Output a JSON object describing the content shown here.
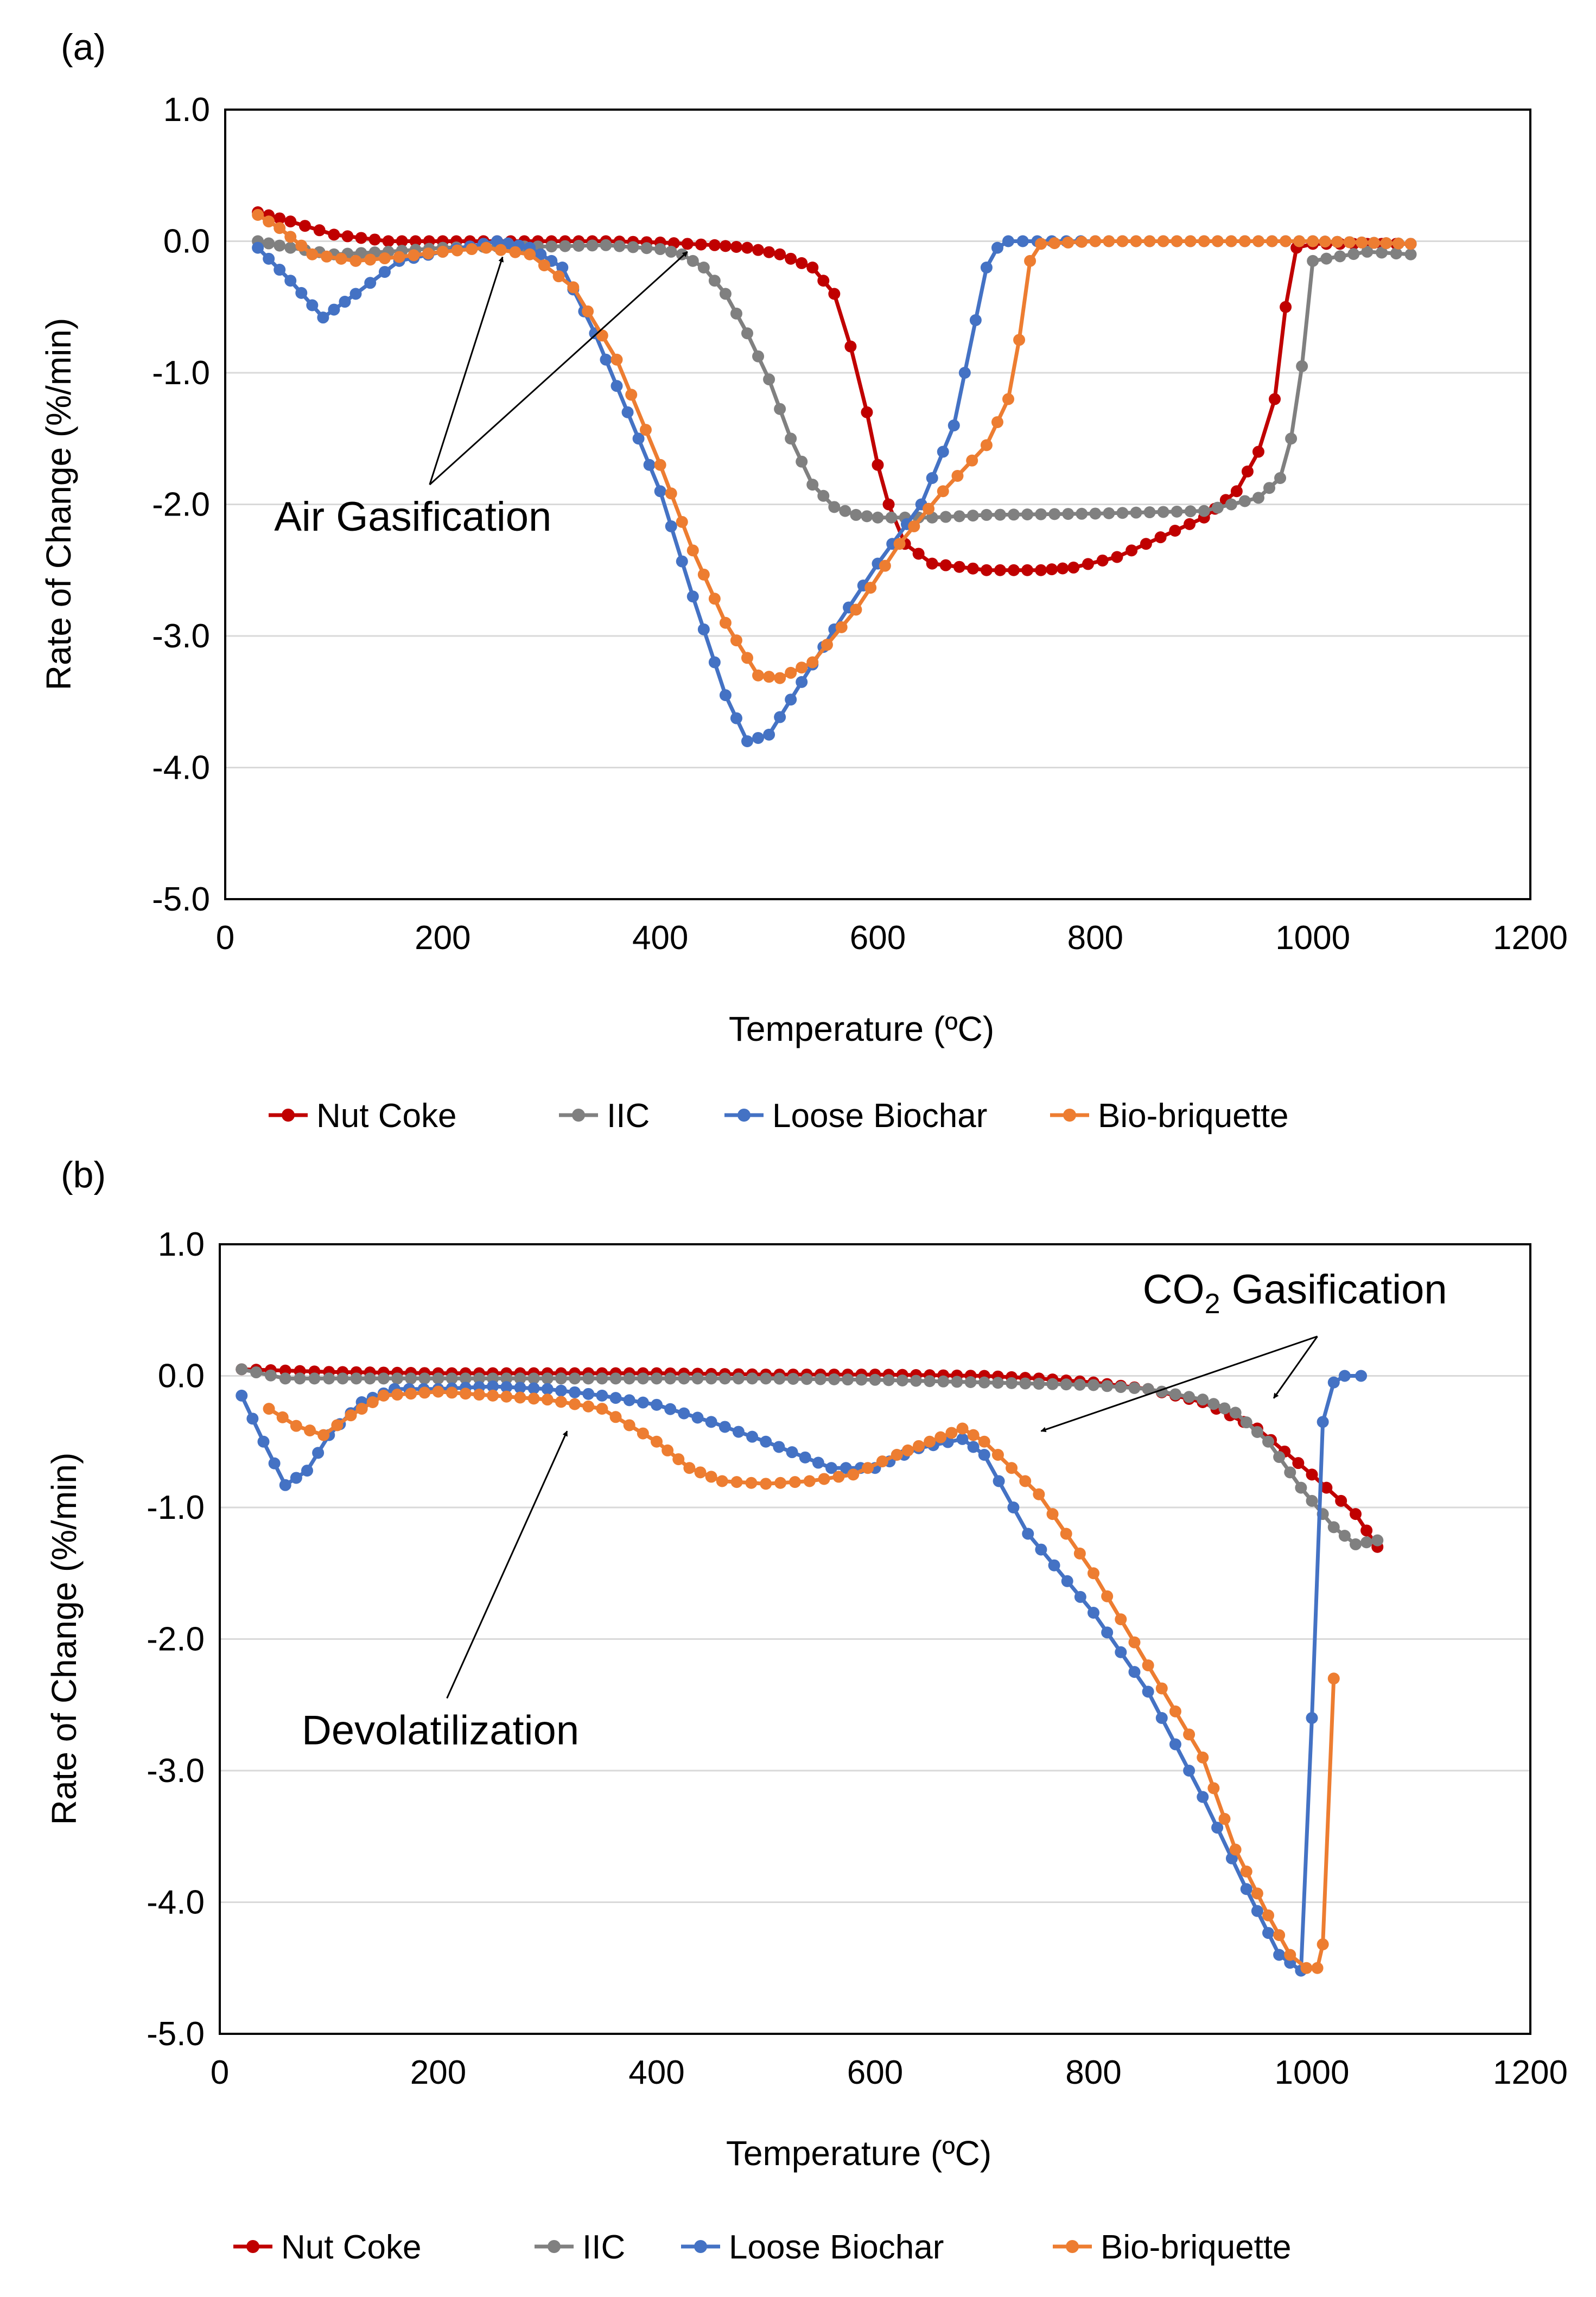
{
  "chart_data": [
    {
      "type": "line",
      "panel_label": "(a)",
      "xlabel": "Temperature (ºC)",
      "ylabel": "Rate of Change (%/min)",
      "xlim": [
        0,
        1200
      ],
      "ylim": [
        -5,
        1
      ],
      "xticks": [
        0,
        200,
        400,
        600,
        800,
        1000,
        1200
      ],
      "xtick_labels": [
        "0",
        "200",
        "400",
        "600",
        "800",
        "1000",
        "1200"
      ],
      "yticks": [
        1,
        0,
        -1,
        -2,
        -3,
        -4,
        -5
      ],
      "ytick_labels": [
        "1.0",
        "0.0",
        "-1.0",
        "-2.0",
        "-3.0",
        "-4.0",
        "-5.0"
      ],
      "grid": "horizontal",
      "legend_position": "bottom",
      "annotations": [
        {
          "text": "Air Gasification",
          "anchor": [
            45,
            -2.2
          ],
          "arrows_to": [
            [
              255,
              -0.12
            ],
            [
              425,
              -0.08
            ]
          ],
          "arrow_origin": [
            188,
            -1.85
          ]
        }
      ],
      "series": [
        {
          "name": "Nut Coke",
          "color": "#C00000",
          "x": [
            30,
            60,
            100,
            150,
            200,
            250,
            300,
            350,
            400,
            450,
            480,
            510,
            540,
            560,
            575,
            590,
            600,
            610,
            625,
            650,
            700,
            750,
            780,
            820,
            860,
            900,
            930,
            950,
            965,
            975,
            985,
            1000,
            1050,
            1090
          ],
          "y": [
            0.22,
            0.15,
            0.05,
            0.0,
            0.0,
            0.0,
            0.0,
            0.0,
            -0.01,
            -0.03,
            -0.05,
            -0.1,
            -0.2,
            -0.4,
            -0.8,
            -1.3,
            -1.7,
            -2.0,
            -2.3,
            -2.45,
            -2.5,
            -2.5,
            -2.48,
            -2.4,
            -2.25,
            -2.1,
            -1.9,
            -1.6,
            -1.2,
            -0.5,
            -0.05,
            -0.02,
            -0.02,
            -0.02
          ]
        },
        {
          "name": "IIC",
          "color": "#808080",
          "x": [
            30,
            60,
            100,
            150,
            200,
            250,
            300,
            350,
            400,
            420,
            440,
            460,
            480,
            500,
            520,
            540,
            560,
            580,
            600,
            650,
            700,
            800,
            900,
            950,
            970,
            980,
            990,
            1000,
            1050,
            1090
          ],
          "y": [
            0.0,
            -0.05,
            -0.1,
            -0.08,
            -0.05,
            -0.04,
            -0.04,
            -0.03,
            -0.06,
            -0.1,
            -0.2,
            -0.4,
            -0.7,
            -1.05,
            -1.5,
            -1.85,
            -2.02,
            -2.08,
            -2.1,
            -2.1,
            -2.08,
            -2.07,
            -2.05,
            -1.95,
            -1.8,
            -1.5,
            -0.95,
            -0.15,
            -0.08,
            -0.1
          ]
        },
        {
          "name": "Loose Biochar",
          "color": "#4472C4",
          "x": [
            30,
            60,
            90,
            120,
            160,
            200,
            250,
            280,
            310,
            340,
            370,
            400,
            430,
            460,
            480,
            500,
            530,
            560,
            600,
            640,
            670,
            690,
            700,
            710,
            720,
            760,
            800,
            900,
            1000,
            1090
          ],
          "y": [
            -0.05,
            -0.3,
            -0.58,
            -0.4,
            -0.15,
            -0.08,
            0.0,
            -0.05,
            -0.2,
            -0.7,
            -1.3,
            -1.9,
            -2.7,
            -3.45,
            -3.8,
            -3.75,
            -3.35,
            -2.95,
            -2.45,
            -2.0,
            -1.4,
            -0.6,
            -0.2,
            -0.05,
            0.0,
            0.0,
            0.0,
            0.0,
            0.0,
            -0.02
          ]
        },
        {
          "name": "Bio-briquette",
          "color": "#ED7D31",
          "x": [
            30,
            50,
            80,
            120,
            160,
            200,
            240,
            280,
            320,
            360,
            400,
            430,
            460,
            490,
            510,
            540,
            580,
            620,
            660,
            700,
            720,
            730,
            740,
            750,
            800,
            900,
            1000,
            1090
          ],
          "y": [
            0.2,
            0.1,
            -0.1,
            -0.15,
            -0.12,
            -0.08,
            -0.05,
            -0.1,
            -0.35,
            -0.9,
            -1.7,
            -2.35,
            -2.9,
            -3.3,
            -3.32,
            -3.2,
            -2.8,
            -2.3,
            -1.9,
            -1.55,
            -1.2,
            -0.75,
            -0.15,
            -0.02,
            0.0,
            0.0,
            0.0,
            -0.02
          ]
        }
      ]
    },
    {
      "type": "line",
      "panel_label": "(b)",
      "xlabel": "Temperature (ºC)",
      "ylabel": "Rate of Change (%/min)",
      "xlim": [
        0,
        1200
      ],
      "ylim": [
        -5,
        1
      ],
      "xticks": [
        0,
        200,
        400,
        600,
        800,
        1000,
        1200
      ],
      "xtick_labels": [
        "0",
        "200",
        "400",
        "600",
        "800",
        "1000",
        "1200"
      ],
      "yticks": [
        1,
        0,
        -1,
        -2,
        -3,
        -4,
        -5
      ],
      "ytick_labels": [
        "1.0",
        "0.0",
        "-1.0",
        "-2.0",
        "-3.0",
        "-4.0",
        "-5.0"
      ],
      "grid": "horizontal",
      "legend_position": "bottom",
      "annotations": [
        {
          "text": "Devolatilization",
          "anchor": [
            75,
            -2.8
          ],
          "arrows_to": [
            [
              318,
              -0.42
            ]
          ],
          "arrow_origin": [
            208,
            -2.45
          ]
        },
        {
          "text_main": "CO",
          "text_sub": "2",
          "text_rest": " Gasification",
          "anchor": [
            845,
            0.55
          ],
          "arrows_to": [
            [
              965,
              -0.17
            ],
            [
              752,
              -0.42
            ]
          ],
          "arrow_origin": [
            1005,
            0.3
          ]
        }
      ],
      "series": [
        {
          "name": "Nut Coke",
          "color": "#C00000",
          "x": [
            20,
            60,
            100,
            200,
            300,
            400,
            500,
            600,
            700,
            750,
            800,
            850,
            900,
            950,
            1000,
            1040,
            1060
          ],
          "y": [
            0.05,
            0.04,
            0.03,
            0.02,
            0.02,
            0.02,
            0.01,
            0.01,
            0.0,
            -0.02,
            -0.05,
            -0.1,
            -0.2,
            -0.4,
            -0.75,
            -1.05,
            -1.3
          ]
        },
        {
          "name": "IIC",
          "color": "#808080",
          "x": [
            20,
            60,
            100,
            200,
            300,
            400,
            500,
            600,
            700,
            800,
            850,
            900,
            930,
            960,
            990,
            1020,
            1040,
            1060
          ],
          "y": [
            0.05,
            -0.02,
            -0.02,
            -0.02,
            -0.02,
            -0.02,
            -0.02,
            -0.03,
            -0.05,
            -0.07,
            -0.1,
            -0.18,
            -0.28,
            -0.5,
            -0.85,
            -1.15,
            -1.28,
            -1.25
          ]
        },
        {
          "name": "Loose Biochar",
          "color": "#4472C4",
          "x": [
            20,
            40,
            60,
            80,
            100,
            130,
            160,
            200,
            250,
            300,
            350,
            400,
            450,
            500,
            560,
            600,
            640,
            680,
            700,
            740,
            800,
            850,
            900,
            940,
            970,
            990,
            1000,
            1010,
            1020,
            1030,
            1045
          ],
          "y": [
            -0.15,
            -0.5,
            -0.83,
            -0.72,
            -0.45,
            -0.2,
            -0.1,
            -0.1,
            -0.08,
            -0.1,
            -0.15,
            -0.22,
            -0.35,
            -0.5,
            -0.7,
            -0.7,
            -0.55,
            -0.48,
            -0.6,
            -1.2,
            -1.8,
            -2.4,
            -3.2,
            -3.9,
            -4.4,
            -4.52,
            -2.6,
            -0.35,
            -0.05,
            0.0,
            0.0
          ]
        },
        {
          "name": "Bio-briquette",
          "color": "#ED7D31",
          "x": [
            45,
            70,
            95,
            120,
            150,
            200,
            250,
            300,
            350,
            400,
            430,
            460,
            500,
            540,
            580,
            620,
            650,
            680,
            700,
            750,
            800,
            850,
            900,
            930,
            960,
            980,
            995,
            1005,
            1010,
            1020
          ],
          "y": [
            -0.25,
            -0.38,
            -0.45,
            -0.3,
            -0.15,
            -0.12,
            -0.15,
            -0.18,
            -0.25,
            -0.5,
            -0.7,
            -0.8,
            -0.82,
            -0.8,
            -0.75,
            -0.6,
            -0.5,
            -0.4,
            -0.5,
            -0.9,
            -1.5,
            -2.2,
            -2.9,
            -3.6,
            -4.1,
            -4.4,
            -4.5,
            -4.5,
            -4.32,
            -2.3
          ]
        }
      ]
    }
  ]
}
